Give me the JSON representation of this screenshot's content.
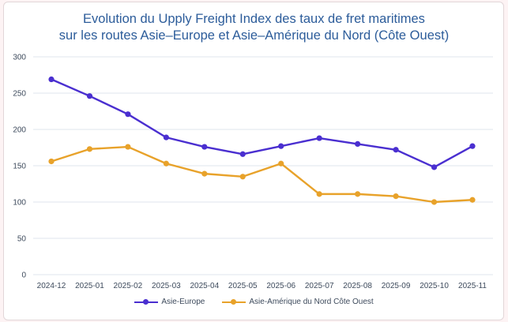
{
  "chart_data": {
    "type": "line",
    "title": "Evolution du Upply Freight Index des taux de fret maritimes sur les routes Asie–Europe et Asie–Amérique du Nord (Côte Ouest)",
    "title_lines": [
      "Evolution du Upply Freight Index des taux de fret maritimes",
      "sur les routes Asie–Europe et Asie–Amérique du Nord (Côte Ouest)"
    ],
    "categories": [
      "2024-12",
      "2025-01",
      "2025-02",
      "2025-03",
      "2025-04",
      "2025-05",
      "2025-06",
      "2025-07",
      "2025-08",
      "2025-09",
      "2025-10",
      "2025-11"
    ],
    "series": [
      {
        "name": "Asie-Europe",
        "color": "#4a2fd0",
        "values": [
          269,
          246,
          221,
          189,
          176,
          166,
          177,
          188,
          180,
          172,
          148,
          177
        ]
      },
      {
        "name": "Asie-Amérique du Nord Côte Ouest",
        "color": "#e8a22a",
        "values": [
          156,
          173,
          176,
          153,
          139,
          135,
          153,
          111,
          111,
          108,
          100,
          103
        ]
      }
    ],
    "ylim": [
      0,
      300
    ],
    "yticks": [
      0,
      50,
      100,
      150,
      200,
      250,
      300
    ],
    "xlabel": "",
    "ylabel": "",
    "grid": true,
    "legend": "bottom"
  }
}
